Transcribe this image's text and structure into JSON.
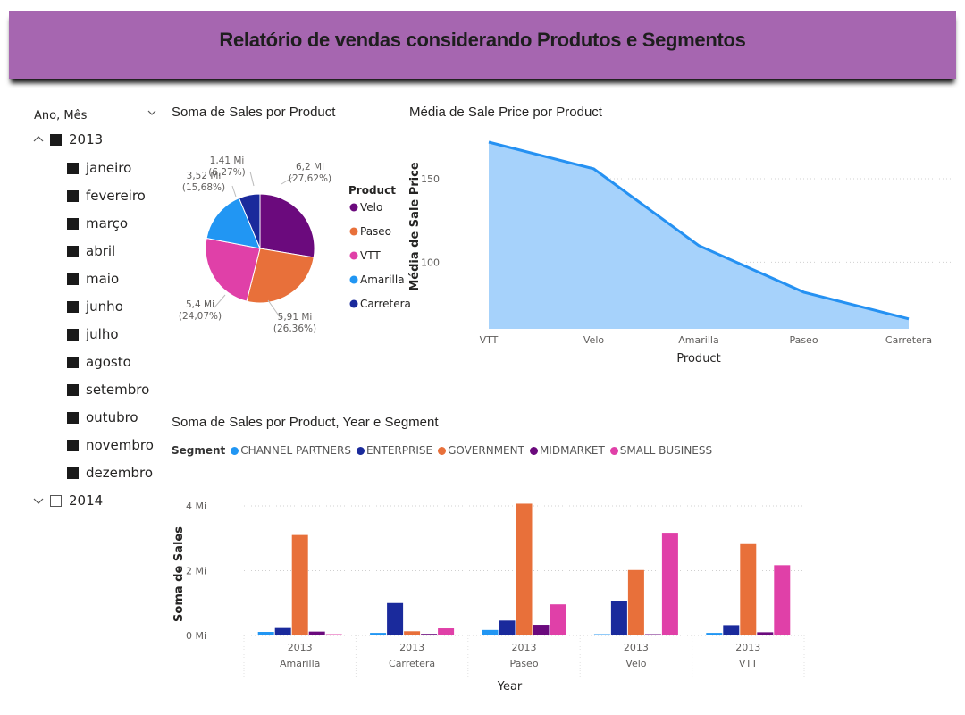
{
  "header": {
    "title": "Relatório de vendas considerando Produtos e Segmentos"
  },
  "slicer": {
    "title": "Ano, Mês",
    "years": [
      {
        "label": "2013",
        "expanded": true,
        "checked": true
      },
      {
        "label": "2014",
        "expanded": false,
        "checked": false
      }
    ],
    "months": [
      "janeiro",
      "fevereiro",
      "março",
      "abril",
      "maio",
      "junho",
      "julho",
      "agosto",
      "setembro",
      "outubro",
      "novembro",
      "dezembro"
    ]
  },
  "pie": {
    "title": "Soma de Sales por Product",
    "legend_title": "Product",
    "colors": {
      "Velo": "#6b0a7d",
      "Paseo": "#e8703a",
      "VTT": "#e040a8",
      "Amarilla": "#2196f3",
      "Carretera": "#1a2a9c"
    }
  },
  "area": {
    "title": "Média de Sale Price por Product",
    "xlabel": "Product",
    "ylabel": "Média de Sale Price",
    "fill": "#a6d2fb",
    "line": "#2591f2"
  },
  "bars": {
    "title": "Soma de Sales por Product, Year e Segment",
    "legend_title": "Segment",
    "xlabel": "Year",
    "ylabel": "Soma de Sales",
    "year_label": "2013"
  },
  "chart_data": [
    {
      "type": "pie",
      "title": "Soma de Sales por Product",
      "legend": [
        "Velo",
        "Paseo",
        "VTT",
        "Amarilla",
        "Carretera"
      ],
      "slices": [
        {
          "label": "Velo",
          "value": 6.2,
          "display": "6,2 Mi",
          "pct": "(27,62%)"
        },
        {
          "label": "Paseo",
          "value": 5.91,
          "display": "5,91 Mi",
          "pct": "(26,36%)"
        },
        {
          "label": "VTT",
          "value": 5.4,
          "display": "5,4 Mi",
          "pct": "(24,07%)"
        },
        {
          "label": "Amarilla",
          "value": 3.52,
          "display": "3,52 Mi",
          "pct": "(15,68%)"
        },
        {
          "label": "Carretera",
          "value": 1.41,
          "display": "1,41 Mi",
          "pct": "(6,27%)"
        }
      ]
    },
    {
      "type": "area",
      "title": "Média de Sale Price por Product",
      "categories": [
        "VTT",
        "Velo",
        "Amarilla",
        "Paseo",
        "Carretera"
      ],
      "values": [
        172,
        156,
        110,
        82,
        66
      ],
      "yticks": [
        100,
        150
      ],
      "ylim": [
        60,
        172
      ],
      "xlabel": "Product",
      "ylabel": "Média de Sale Price",
      "grid": true
    },
    {
      "type": "bar",
      "title": "Soma de Sales por Product, Year e Segment",
      "categories": [
        "Amarilla",
        "Carretera",
        "Paseo",
        "Velo",
        "VTT"
      ],
      "series": [
        {
          "name": "CHANNEL PARTNERS",
          "color": "#2196f3",
          "values": [
            0.11,
            0.08,
            0.17,
            0.02,
            0.08
          ]
        },
        {
          "name": "ENTERPRISE",
          "color": "#1a2a9c",
          "values": [
            0.23,
            1.0,
            0.46,
            1.06,
            0.32
          ]
        },
        {
          "name": "GOVERNMENT",
          "color": "#e8703a",
          "values": [
            3.1,
            0.13,
            4.07,
            2.02,
            2.82
          ]
        },
        {
          "name": "MIDMARKET",
          "color": "#6b0a7d",
          "values": [
            0.12,
            0.05,
            0.33,
            0.04,
            0.1
          ]
        },
        {
          "name": "SMALL BUSINESS",
          "color": "#e040a8",
          "values": [
            0.03,
            0.22,
            0.96,
            3.17,
            2.17
          ]
        }
      ],
      "yticks": [
        0,
        2,
        4
      ],
      "ytick_labels": [
        "0 Mi",
        "2 Mi",
        "4 Mi"
      ],
      "ylim": [
        0,
        4
      ],
      "xlabel": "Year",
      "ylabel": "Soma de Sales",
      "grid": true
    }
  ]
}
